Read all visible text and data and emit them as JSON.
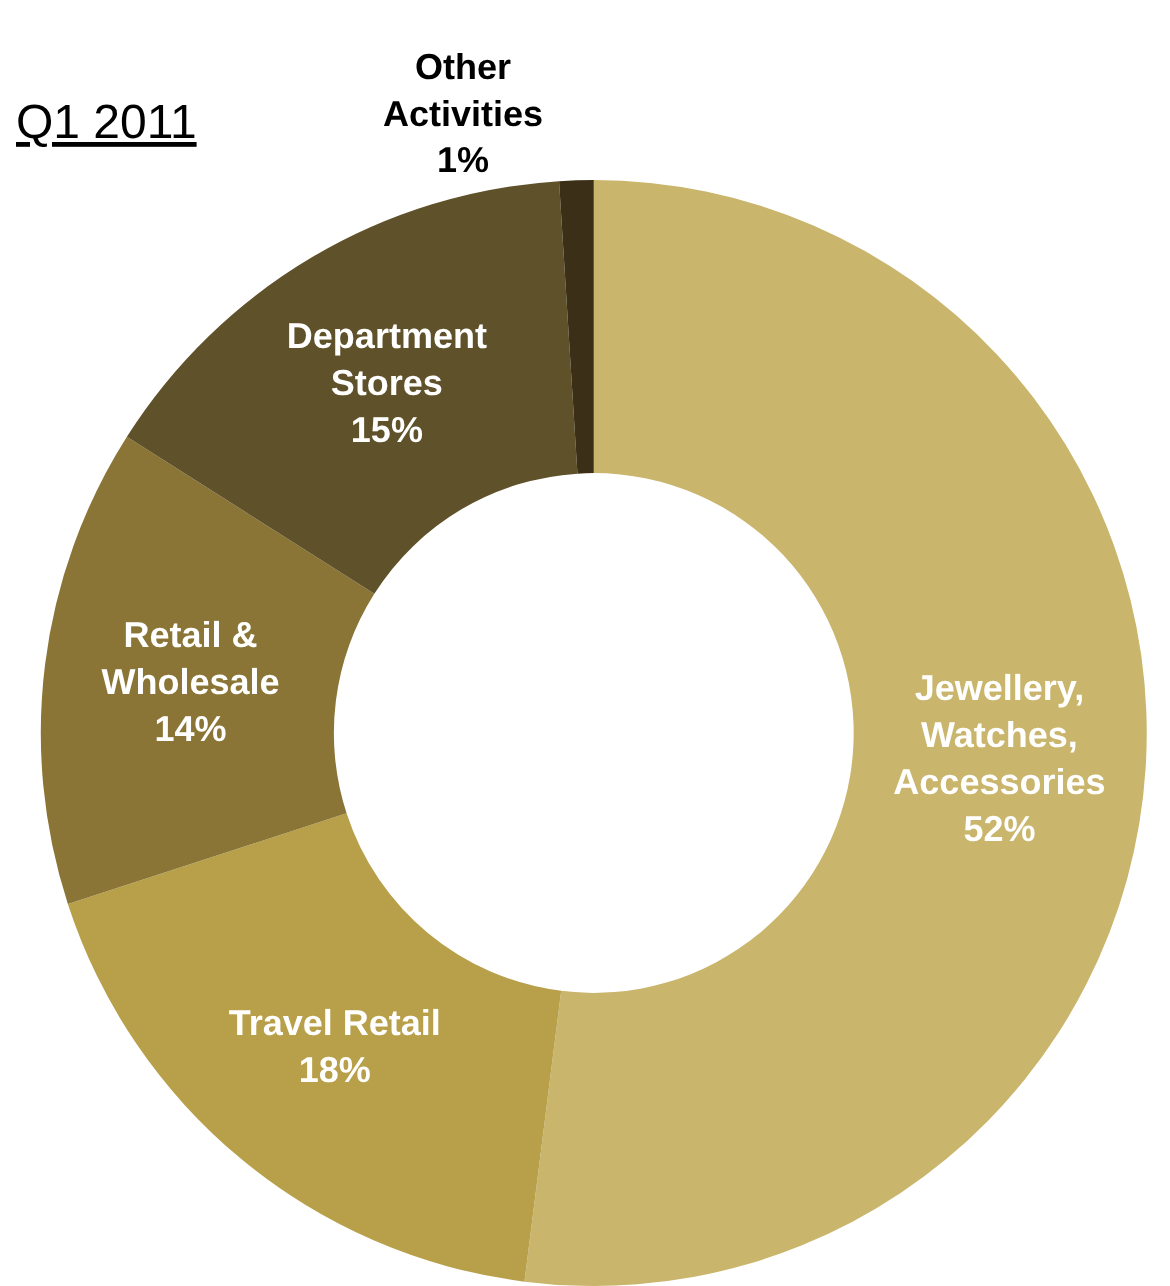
{
  "chart_data": {
    "type": "donut",
    "title": "Q1 2011",
    "categories": [
      "Jewellery,\nWatches,\nAccessories",
      "Travel Retail",
      "Retail &\nWholesale",
      "Department\nStores",
      "Other\nActivities"
    ],
    "values": [
      52,
      18,
      14,
      15,
      1
    ],
    "value_labels": [
      "52%",
      "18%",
      "14%",
      "15%",
      "1%"
    ],
    "colors": [
      "#c9b56b",
      "#b8a04a",
      "#8a7536",
      "#5f5129",
      "#3b3017"
    ],
    "legend": false
  }
}
